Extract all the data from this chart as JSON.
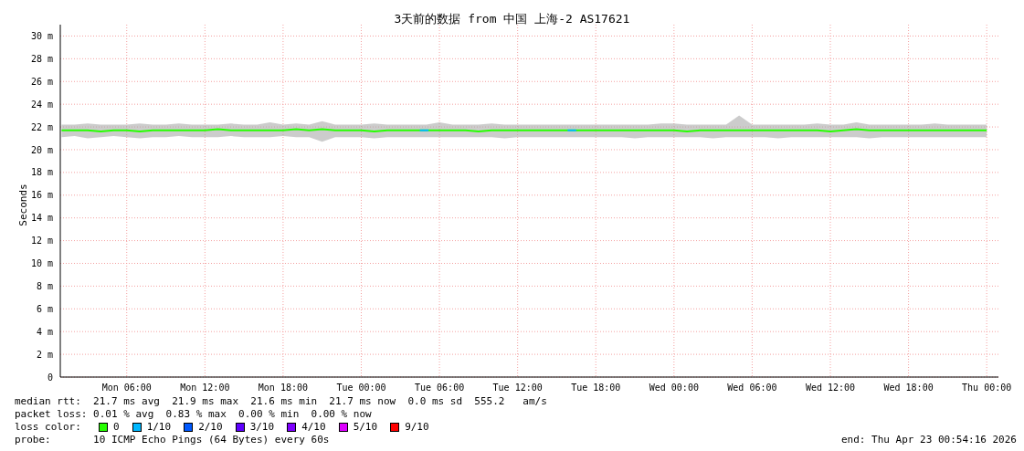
{
  "chart_data": {
    "type": "line",
    "title": "3天前的数据 from 中国 上海-2 AS17621",
    "ylabel": "Seconds",
    "xlim": [
      "2026-04-20T00:54",
      "2026-04-23T00:54"
    ],
    "xticks": [
      {
        "value": "2026-04-20T06:00",
        "label": "Mon 06:00"
      },
      {
        "value": "2026-04-20T12:00",
        "label": "Mon 12:00"
      },
      {
        "value": "2026-04-20T18:00",
        "label": "Mon 18:00"
      },
      {
        "value": "2026-04-21T00:00",
        "label": "Tue 00:00"
      },
      {
        "value": "2026-04-21T06:00",
        "label": "Tue 06:00"
      },
      {
        "value": "2026-04-21T12:00",
        "label": "Tue 12:00"
      },
      {
        "value": "2026-04-21T18:00",
        "label": "Tue 18:00"
      },
      {
        "value": "2026-04-22T00:00",
        "label": "Wed 00:00"
      },
      {
        "value": "2026-04-22T06:00",
        "label": "Wed 06:00"
      },
      {
        "value": "2026-04-22T12:00",
        "label": "Wed 12:00"
      },
      {
        "value": "2026-04-22T18:00",
        "label": "Wed 18:00"
      },
      {
        "value": "2026-04-23T00:00",
        "label": "Thu 00:00"
      }
    ],
    "ylim": [
      0,
      31
    ],
    "yticks": [
      0,
      {
        "value": 2,
        "label": "2 m"
      },
      {
        "value": 4,
        "label": "4 m"
      },
      {
        "value": 6,
        "label": "6 m"
      },
      {
        "value": 8,
        "label": "8 m"
      },
      {
        "value": 10,
        "label": "10 m"
      },
      {
        "value": 12,
        "label": "12 m"
      },
      {
        "value": 14,
        "label": "14 m"
      },
      {
        "value": 16,
        "label": "16 m"
      },
      {
        "value": 18,
        "label": "18 m"
      },
      {
        "value": 20,
        "label": "20 m"
      },
      {
        "value": 22,
        "label": "22 m"
      },
      {
        "value": 24,
        "label": "24 m"
      },
      {
        "value": 26,
        "label": "26 m"
      },
      {
        "value": 28,
        "label": "28 m"
      },
      {
        "value": 30,
        "label": "30 m"
      }
    ],
    "grid": true,
    "legend": "bottom",
    "legend_title": "loss color:",
    "series": [
      {
        "name": "0",
        "color": "#26ff00",
        "x": [
          "2026-04-20T01:00",
          "2026-04-20T02:00",
          "2026-04-20T03:00",
          "2026-04-20T04:00",
          "2026-04-20T05:00",
          "2026-04-20T06:00",
          "2026-04-20T07:00",
          "2026-04-20T08:00",
          "2026-04-20T09:00",
          "2026-04-20T10:00",
          "2026-04-20T11:00",
          "2026-04-20T12:00",
          "2026-04-20T13:00",
          "2026-04-20T14:00",
          "2026-04-20T15:00",
          "2026-04-20T16:00",
          "2026-04-20T17:00",
          "2026-04-20T18:00",
          "2026-04-20T19:00",
          "2026-04-20T20:00",
          "2026-04-20T21:00",
          "2026-04-20T22:00",
          "2026-04-20T23:00",
          "2026-04-21T00:00",
          "2026-04-21T01:00",
          "2026-04-21T02:00",
          "2026-04-21T03:00",
          "2026-04-21T04:00",
          "2026-04-21T05:00",
          "2026-04-21T06:00",
          "2026-04-21T07:00",
          "2026-04-21T08:00",
          "2026-04-21T09:00",
          "2026-04-21T10:00",
          "2026-04-21T11:00",
          "2026-04-21T12:00",
          "2026-04-21T13:00",
          "2026-04-21T14:00",
          "2026-04-21T15:00",
          "2026-04-21T16:00",
          "2026-04-21T17:00",
          "2026-04-21T18:00",
          "2026-04-21T19:00",
          "2026-04-21T20:00",
          "2026-04-21T21:00",
          "2026-04-21T22:00",
          "2026-04-21T23:00",
          "2026-04-22T00:00",
          "2026-04-22T01:00",
          "2026-04-22T02:00",
          "2026-04-22T03:00",
          "2026-04-22T04:00",
          "2026-04-22T05:00",
          "2026-04-22T06:00",
          "2026-04-22T07:00",
          "2026-04-22T08:00",
          "2026-04-22T09:00",
          "2026-04-22T10:00",
          "2026-04-22T11:00",
          "2026-04-22T12:00",
          "2026-04-22T13:00",
          "2026-04-22T14:00",
          "2026-04-22T15:00",
          "2026-04-22T16:00",
          "2026-04-22T17:00",
          "2026-04-22T18:00",
          "2026-04-22T19:00",
          "2026-04-22T20:00",
          "2026-04-22T21:00",
          "2026-04-22T22:00",
          "2026-04-22T23:00",
          "2026-04-23T00:00"
        ],
        "values": [
          21.7,
          21.7,
          21.7,
          21.6,
          21.7,
          21.7,
          21.6,
          21.7,
          21.7,
          21.7,
          21.7,
          21.7,
          21.8,
          21.7,
          21.7,
          21.7,
          21.7,
          21.7,
          21.8,
          21.7,
          21.8,
          21.7,
          21.7,
          21.7,
          21.6,
          21.7,
          21.7,
          21.7,
          21.7,
          21.7,
          21.7,
          21.7,
          21.6,
          21.7,
          21.7,
          21.7,
          21.7,
          21.7,
          21.7,
          21.7,
          21.7,
          21.7,
          21.7,
          21.7,
          21.7,
          21.7,
          21.7,
          21.7,
          21.6,
          21.7,
          21.7,
          21.7,
          21.7,
          21.7,
          21.7,
          21.7,
          21.7,
          21.7,
          21.7,
          21.6,
          21.7,
          21.8,
          21.7,
          21.7,
          21.7,
          21.7,
          21.7,
          21.7,
          21.7,
          21.7,
          21.7,
          21.7
        ],
        "lower": [
          21.1,
          21.2,
          21.0,
          21.1,
          21.2,
          21.1,
          21.0,
          21.1,
          21.1,
          21.2,
          21.1,
          21.1,
          21.1,
          21.2,
          21.1,
          21.1,
          21.1,
          21.2,
          21.1,
          21.1,
          20.7,
          21.1,
          21.1,
          21.1,
          21.0,
          21.1,
          21.1,
          21.1,
          21.1,
          21.1,
          21.1,
          21.1,
          21.1,
          21.1,
          21.0,
          21.1,
          21.1,
          21.1,
          21.1,
          21.1,
          21.1,
          21.1,
          21.1,
          21.1,
          21.0,
          21.1,
          21.1,
          21.1,
          21.1,
          21.1,
          21.0,
          21.1,
          21.1,
          21.1,
          21.1,
          21.0,
          21.1,
          21.1,
          21.1,
          21.1,
          21.1,
          21.1,
          21.0,
          21.1,
          21.1,
          21.1,
          21.1,
          21.1,
          21.1,
          21.1,
          21.1,
          21.1
        ],
        "upper": [
          22.2,
          22.2,
          22.3,
          22.2,
          22.2,
          22.2,
          22.3,
          22.2,
          22.2,
          22.3,
          22.2,
          22.2,
          22.2,
          22.3,
          22.2,
          22.2,
          22.4,
          22.2,
          22.3,
          22.2,
          22.5,
          22.2,
          22.2,
          22.2,
          22.3,
          22.2,
          22.2,
          22.2,
          22.2,
          22.4,
          22.2,
          22.2,
          22.2,
          22.3,
          22.2,
          22.2,
          22.2,
          22.2,
          22.2,
          22.2,
          22.2,
          22.2,
          22.2,
          22.2,
          22.2,
          22.2,
          22.3,
          22.3,
          22.2,
          22.2,
          22.2,
          22.2,
          23.0,
          22.2,
          22.2,
          22.2,
          22.2,
          22.2,
          22.3,
          22.2,
          22.2,
          22.4,
          22.2,
          22.2,
          22.2,
          22.2,
          22.2,
          22.3,
          22.2,
          22.2,
          22.2,
          22.2
        ]
      },
      {
        "name": "1/10",
        "color": "#00b8ff",
        "x": [
          "2026-04-21T04:30",
          "2026-04-21T05:10",
          "2026-04-21T10:00",
          "2026-04-21T15:50",
          "2026-04-21T16:30"
        ],
        "values": [
          21.7,
          21.7,
          null,
          21.7,
          21.7
        ]
      },
      {
        "name": "2/10",
        "color": "#0059ff"
      },
      {
        "name": "3/10",
        "color": "#5e00ff"
      },
      {
        "name": "4/10",
        "color": "#7e00ff"
      },
      {
        "name": "5/10",
        "color": "#dd00ff"
      },
      {
        "name": "9/10",
        "color": "#ff0000"
      }
    ],
    "annotations": [
      "median rtt:  21.7 ms avg  21.9 ms max  21.6 ms min  21.7 ms now  0.0 ms sd  555.2   am/s",
      "packet loss: 0.01 % avg  0.83 % max  0.00 % min  0.00 % now",
      "probe:       10 ICMP Echo Pings (64 Bytes) every 60s",
      "end: Thu Apr 23 00:54:16 2026"
    ]
  }
}
